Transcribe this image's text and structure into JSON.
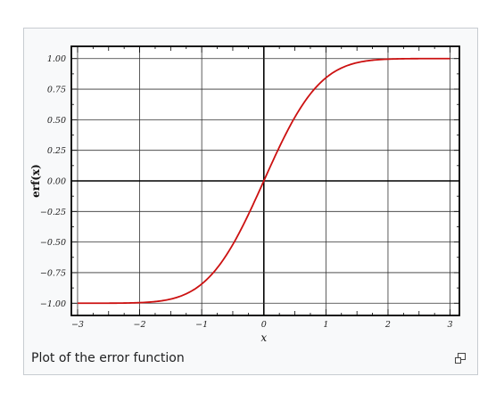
{
  "chart_data": {
    "type": "line",
    "title": "",
    "xlabel": "x",
    "ylabel": "erf(x)",
    "xlim": [
      -3.1,
      3.15
    ],
    "ylim": [
      -1.1,
      1.1
    ],
    "grid": true,
    "x_ticks": [
      -3,
      -2,
      -1,
      0,
      1,
      2,
      3
    ],
    "x_tick_labels": [
      "−3",
      "−2",
      "−1",
      "0",
      "1",
      "2",
      "3"
    ],
    "y_ticks": [
      1.0,
      0.75,
      0.5,
      0.25,
      0.0,
      -0.25,
      -0.5,
      -0.75,
      -1.0
    ],
    "y_tick_labels": [
      "1.00",
      "0.75",
      "0.50",
      "0.25",
      "0.00",
      "−0.25",
      "−0.50",
      "−0.75",
      "−1.00"
    ],
    "series": [
      {
        "color": "#cc1111",
        "x": [
          -3.0,
          -2.75,
          -2.5,
          -2.25,
          -2.0,
          -1.75,
          -1.5,
          -1.25,
          -1.0,
          -0.75,
          -0.5,
          -0.25,
          0.0,
          0.25,
          0.5,
          0.75,
          1.0,
          1.25,
          1.5,
          1.75,
          2.0,
          2.25,
          2.5,
          2.75,
          3.0
        ],
        "y": [
          -1.0,
          -0.9999,
          -0.9996,
          -0.9985,
          -0.9953,
          -0.9867,
          -0.9661,
          -0.9229,
          -0.8427,
          -0.7112,
          -0.5205,
          -0.2763,
          0.0,
          0.2763,
          0.5205,
          0.7112,
          0.8427,
          0.9229,
          0.9661,
          0.9867,
          0.9953,
          0.9985,
          0.9996,
          0.9999,
          1.0
        ]
      }
    ]
  },
  "caption": "Plot of the error function",
  "icons": {
    "enlarge": "magnify-clip-icon"
  }
}
